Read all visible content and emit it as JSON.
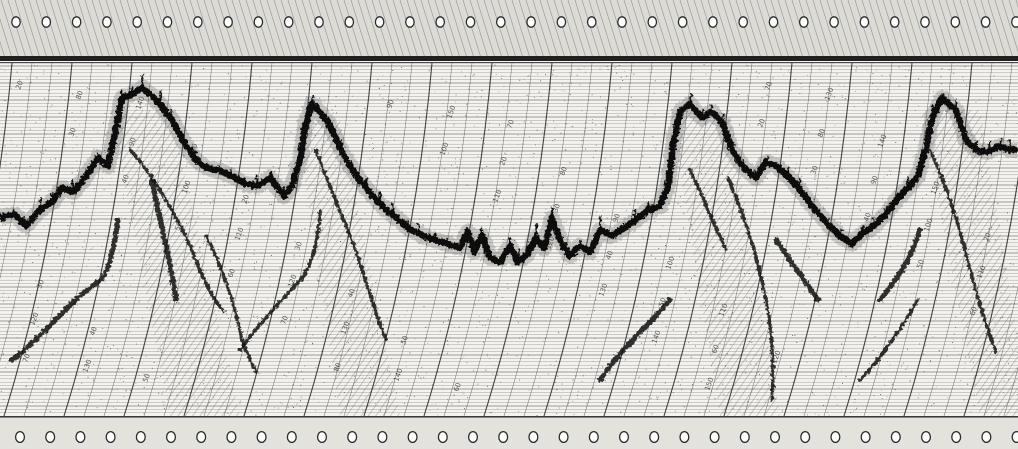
{
  "record": {
    "kind": "echo-sounder bathymetric chart record (scanned)",
    "paper_color": "#f4f3ef",
    "ink_color": "#1a1a1a",
    "trace_color": "#0b0b0b",
    "sprocket_holes": "both edges",
    "arc_labels": [
      "20",
      "30",
      "40",
      "50",
      "60",
      "70",
      "80",
      "90",
      "100",
      "110",
      "120",
      "130",
      "140",
      "150"
    ]
  }
}
